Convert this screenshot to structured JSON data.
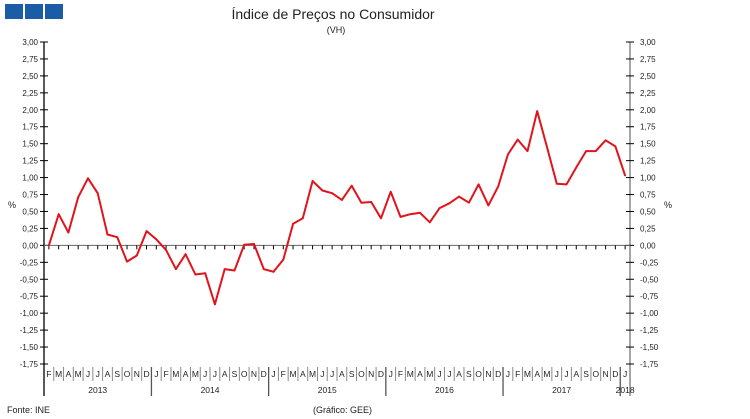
{
  "logo_name": "three-blue-squares-logo",
  "chart_data": {
    "type": "line",
    "title": "Índice de Preços no Consumidor",
    "subtitle": "(VH)",
    "ylabel_left": "%",
    "ylabel_right": "%",
    "ylim": [
      -1.75,
      3.0
    ],
    "ytick_step": 0.25,
    "yticks": [
      "3,00",
      "2,75",
      "2,50",
      "2,25",
      "2,00",
      "1,75",
      "1,50",
      "1,25",
      "1,00",
      "0,75",
      "0,50",
      "0,25",
      "0,00",
      "-0,25",
      "-0,50",
      "-0,75",
      "-1,00",
      "-1,25",
      "-1,50",
      "-1,75"
    ],
    "months": [
      "F",
      "M",
      "A",
      "M",
      "J",
      "J",
      "A",
      "S",
      "O",
      "N",
      "D",
      "J",
      "F",
      "M",
      "A",
      "M",
      "J",
      "J",
      "A",
      "S",
      "O",
      "N",
      "D",
      "J",
      "F",
      "M",
      "A",
      "M",
      "J",
      "J",
      "A",
      "S",
      "O",
      "N",
      "D",
      "J",
      "F",
      "M",
      "A",
      "M",
      "J",
      "J",
      "A",
      "S",
      "O",
      "N",
      "D",
      "J",
      "F",
      "M",
      "A",
      "M",
      "J",
      "J",
      "A",
      "S",
      "O",
      "N",
      "D",
      "J"
    ],
    "years": [
      {
        "label": "2013",
        "start": 0,
        "count": 11
      },
      {
        "label": "2014",
        "start": 11,
        "count": 12
      },
      {
        "label": "2015",
        "start": 23,
        "count": 12
      },
      {
        "label": "2016",
        "start": 35,
        "count": 12
      },
      {
        "label": "2017",
        "start": 47,
        "count": 12
      },
      {
        "label": "2018",
        "start": 59,
        "count": 1
      }
    ],
    "series": [
      {
        "name": "IPC VH",
        "color": "#e0141b",
        "values": [
          0.0,
          0.46,
          0.19,
          0.71,
          0.99,
          0.77,
          0.16,
          0.12,
          -0.24,
          -0.15,
          0.21,
          0.09,
          -0.07,
          -0.35,
          -0.13,
          -0.43,
          -0.41,
          -0.87,
          -0.35,
          -0.37,
          0.01,
          0.02,
          -0.35,
          -0.39,
          -0.21,
          0.32,
          0.4,
          0.95,
          0.81,
          0.77,
          0.67,
          0.88,
          0.63,
          0.64,
          0.4,
          0.79,
          0.42,
          0.46,
          0.48,
          0.34,
          0.55,
          0.62,
          0.72,
          0.63,
          0.9,
          0.59,
          0.87,
          1.34,
          1.56,
          1.39,
          1.98,
          1.45,
          0.91,
          0.9,
          1.15,
          1.39,
          1.39,
          1.55,
          1.46,
          1.03
        ]
      }
    ],
    "source": "Fonte: INE",
    "credit": "(Gráfico: GEE)"
  }
}
